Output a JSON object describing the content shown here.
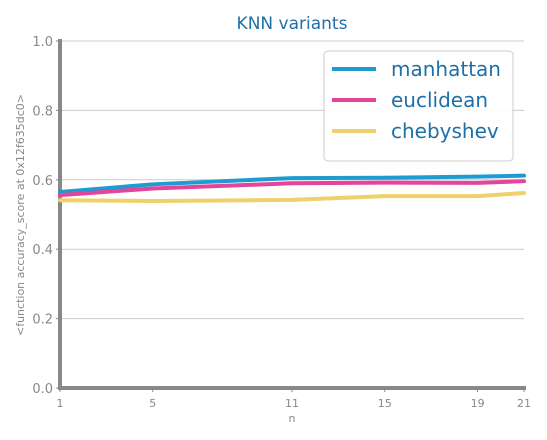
{
  "chart_data": {
    "type": "line",
    "title": "KNN variants",
    "xlabel": "n",
    "ylabel": "<function accuracy_score at 0x12f635dc0>",
    "x": [
      1,
      5,
      11,
      15,
      19,
      21
    ],
    "xticks": [
      "1",
      "5",
      "11",
      "15",
      "19",
      "21"
    ],
    "ylim": [
      0.0,
      1.0
    ],
    "yticks": [
      "0.0",
      "0.2",
      "0.4",
      "0.6",
      "0.8",
      "1.0"
    ],
    "grid": "horizontal",
    "legend_position": "top-right",
    "series": [
      {
        "name": "manhattan",
        "color": "#1f9bd1",
        "values": [
          0.565,
          0.587,
          0.605,
          0.606,
          0.609,
          0.612
        ]
      },
      {
        "name": "euclidean",
        "color": "#e2459b",
        "values": [
          0.556,
          0.575,
          0.59,
          0.592,
          0.591,
          0.596
        ]
      },
      {
        "name": "chebyshev",
        "color": "#efd06a",
        "values": [
          0.541,
          0.539,
          0.542,
          0.553,
          0.553,
          0.562
        ]
      }
    ]
  }
}
